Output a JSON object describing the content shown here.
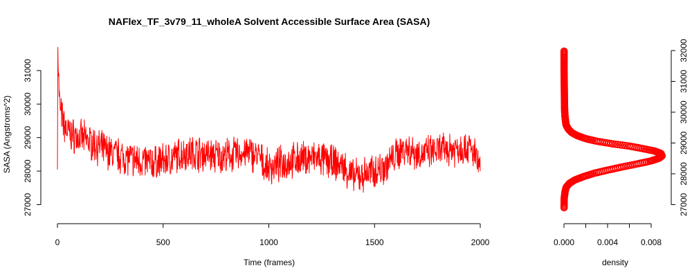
{
  "chart_data": [
    {
      "type": "line",
      "title": "NAFlex_TF_3v79_11_wholeA Solvent Accessible Surface Area (SASA)",
      "xlabel": "Time (frames)",
      "ylabel": "SASA (Angstroms^2)",
      "xlim": [
        0,
        2000
      ],
      "ylim": [
        26700,
        31700
      ],
      "xticks": [
        0,
        500,
        1000,
        1500,
        2000
      ],
      "yticks": [
        27000,
        28000,
        29000,
        30000,
        31000
      ],
      "grid": false,
      "legend": "none",
      "color": "#ff0000",
      "series": [
        {
          "x": [
            0,
            2,
            5,
            8,
            12,
            18,
            25,
            35,
            45,
            60,
            80,
            100,
            130,
            160,
            200,
            250,
            300,
            350,
            400,
            450,
            500,
            550,
            600,
            650,
            700,
            750,
            800,
            850,
            900,
            950,
            980,
            1000,
            1050,
            1100,
            1150,
            1200,
            1250,
            1300,
            1350,
            1380,
            1400,
            1420,
            1450,
            1500,
            1550,
            1600,
            1640,
            1680,
            1720,
            1760,
            1800,
            1850,
            1900,
            1950,
            1980,
            2000
          ],
          "y": [
            28050,
            31700,
            31100,
            30300,
            29900,
            29700,
            29500,
            29300,
            29200,
            29100,
            29050,
            29000,
            28950,
            28850,
            28700,
            28550,
            28450,
            28350,
            28300,
            28250,
            28300,
            28400,
            28550,
            28550,
            28500,
            28450,
            28450,
            28500,
            28550,
            28450,
            28150,
            28100,
            28200,
            28300,
            28350,
            28400,
            28350,
            28250,
            28150,
            27950,
            27800,
            27850,
            27900,
            28000,
            28150,
            28450,
            28700,
            28600,
            28500,
            28550,
            28600,
            28650,
            28700,
            28700,
            28400,
            28000
          ]
        }
      ]
    },
    {
      "type": "scatter",
      "xlabel": "density",
      "xlim": [
        0,
        0.009
      ],
      "ylim": [
        26700,
        32000
      ],
      "xticks": [
        0,
        0.002,
        0.004,
        0.006,
        0.008
      ],
      "xticklabels": [
        "0.000",
        "",
        "0.004",
        "",
        "0.008"
      ],
      "yticks": [
        27000,
        28000,
        29000,
        30000,
        31000,
        32000
      ],
      "yaxis_side": "right",
      "grid": false,
      "legend": "none",
      "color": "#ff0000",
      "series": [
        {
          "x": [
            1e-05,
            1e-05,
            1e-05,
            2e-05,
            3e-05,
            4e-05,
            5e-05,
            7e-05,
            0.0001,
            0.00015,
            0.0002,
            0.0004,
            0.0007,
            0.0012,
            0.002,
            0.0031,
            0.0045,
            0.006,
            0.0072,
            0.0083,
            0.0089,
            0.009,
            0.0087,
            0.0079,
            0.0067,
            0.0053,
            0.004,
            0.0028,
            0.0018,
            0.001,
            0.0005,
            0.0002,
            0.0001,
            2e-05,
            1e-05
          ],
          "y": [
            31980,
            31700,
            31400,
            31100,
            30800,
            30500,
            30200,
            30000,
            29850,
            29700,
            29580,
            29450,
            29340,
            29240,
            29140,
            29050,
            28970,
            28900,
            28820,
            28740,
            28660,
            28580,
            28500,
            28410,
            28320,
            28220,
            28120,
            28020,
            27910,
            27800,
            27690,
            27560,
            27420,
            27200,
            26900
          ]
        }
      ]
    }
  ]
}
